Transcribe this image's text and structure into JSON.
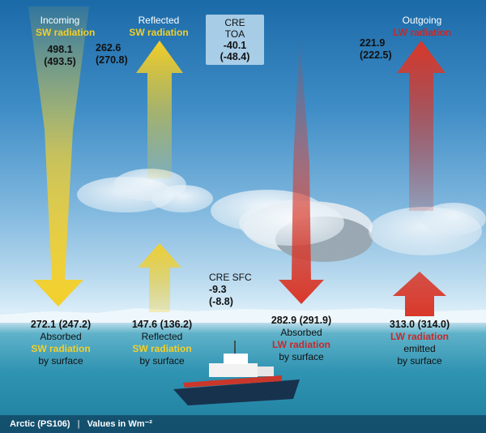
{
  "incoming": {
    "title": "Incoming",
    "type": "SW radiation",
    "value": "498.1",
    "value_alt": "(493.5)"
  },
  "reflected_toa": {
    "title": "Reflected",
    "type": "SW radiation",
    "value": "262.6",
    "value_alt": "(270.8)"
  },
  "cre_toa": {
    "title": "CRE TOA",
    "value": "-40.1",
    "value_alt": "(-48.4)"
  },
  "outgoing": {
    "title": "Outgoing",
    "type": "LW radiation",
    "value": "221.9",
    "value_alt": "(222.5)"
  },
  "cre_sfc": {
    "title": "CRE SFC",
    "value": "-9.3",
    "value_alt": "(-8.8)"
  },
  "absorbed_sw": {
    "value": "272.1 (247.2)",
    "line1": "Absorbed",
    "line2": "SW radiation",
    "line3": "by surface"
  },
  "reflected_sfc": {
    "value": "147.6 (136.2)",
    "line1": "Reflected",
    "line2": "SW radiation",
    "line3": "by surface"
  },
  "absorbed_lw": {
    "value": "282.9 (291.9)",
    "line1": "Absorbed",
    "line2": "LW radiation",
    "line3": "by surface"
  },
  "emitted_lw": {
    "value": "313.0 (314.0)",
    "line1": "LW radiation",
    "line2": "emitted",
    "line3": "by surface"
  },
  "footer": {
    "region": "Arctic (PS106)",
    "separator": "|",
    "units": "Values in Wm⁻²"
  },
  "colors": {
    "sw": "#f3cf2a",
    "lw": "#d8382a"
  }
}
